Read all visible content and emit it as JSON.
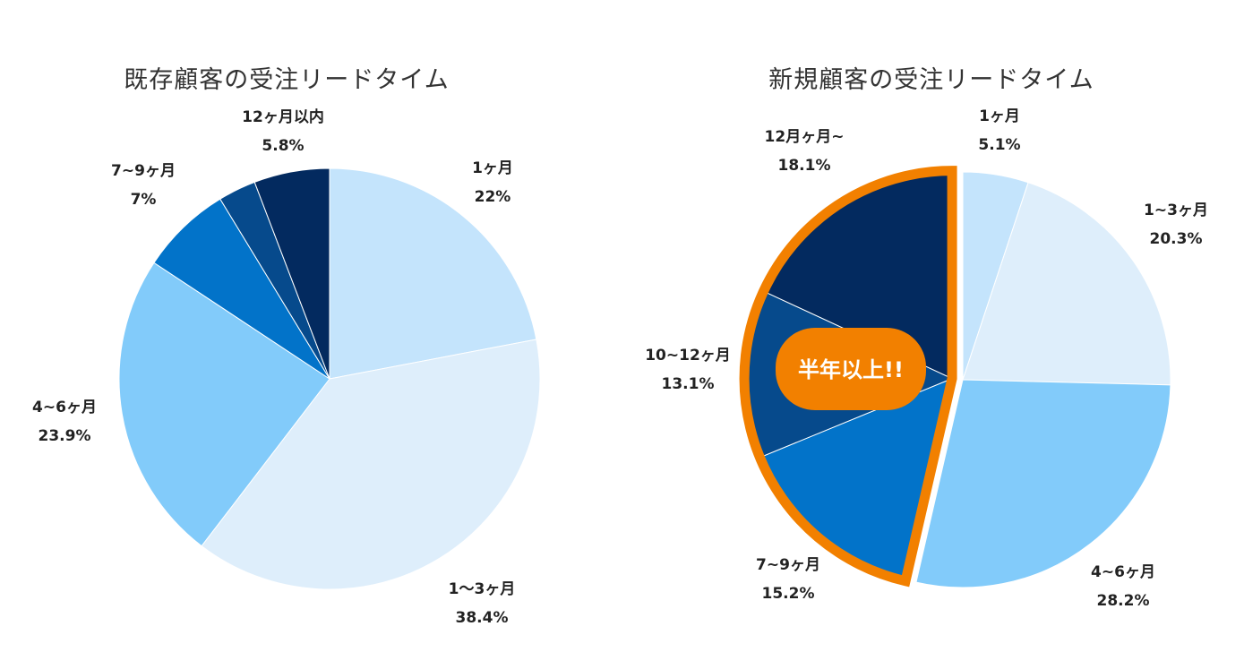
{
  "chart_data": [
    {
      "type": "pie",
      "title": "既存顧客の受注リードタイム",
      "start": "12 o'clock, clockwise",
      "slices": [
        {
          "label": "1ヶ月",
          "value_label": "22%",
          "value": 22,
          "color": "#c4e4fc"
        },
        {
          "label": "1〜3ヶ月",
          "value_label": "38.4%",
          "value": 38.4,
          "color": "#deeefb"
        },
        {
          "label": "4~6ヶ月",
          "value_label": "23.9%",
          "value": 23.9,
          "color": "#82cbfa"
        },
        {
          "label": "7~9ヶ月",
          "value_label": "7%",
          "value": 7,
          "color": "#0273c9"
        },
        {
          "label": "",
          "value_label": "",
          "value": 2.9,
          "color": "#064a8c"
        },
        {
          "label": "12ヶ月以内",
          "value_label": "5.8%",
          "value": 5.8,
          "color": "#032a5f"
        }
      ]
    },
    {
      "type": "pie",
      "title": "新規顧客の受注リードタイム",
      "start": "12 o'clock, clockwise",
      "slices": [
        {
          "label": "1ヶ月",
          "value_label": "5.1%",
          "value": 5.1,
          "color": "#c4e4fc"
        },
        {
          "label": "1~3ヶ月",
          "value_label": "20.3%",
          "value": 20.3,
          "color": "#deeefb"
        },
        {
          "label": "4~6ヶ月",
          "value_label": "28.2%",
          "value": 28.2,
          "color": "#82cbfa"
        },
        {
          "label": "7~9ヶ月",
          "value_label": "15.2%",
          "value": 15.2,
          "color": "#0273c9"
        },
        {
          "label": "10~12ヶ月",
          "value_label": "13.1%",
          "value": 13.1,
          "color": "#064a8c"
        },
        {
          "label": "12月ヶ月~",
          "value_label": "18.1%",
          "value": 18.1,
          "color": "#032a5f"
        }
      ],
      "highlight": {
        "slices": [
          "7~9ヶ月",
          "10~12ヶ月",
          "12月ヶ月~"
        ],
        "exploded": true,
        "outline_color": "#f28000",
        "callout": {
          "text": "半年以上!!",
          "background": "#f28000",
          "color": "#ffffff"
        }
      }
    }
  ]
}
